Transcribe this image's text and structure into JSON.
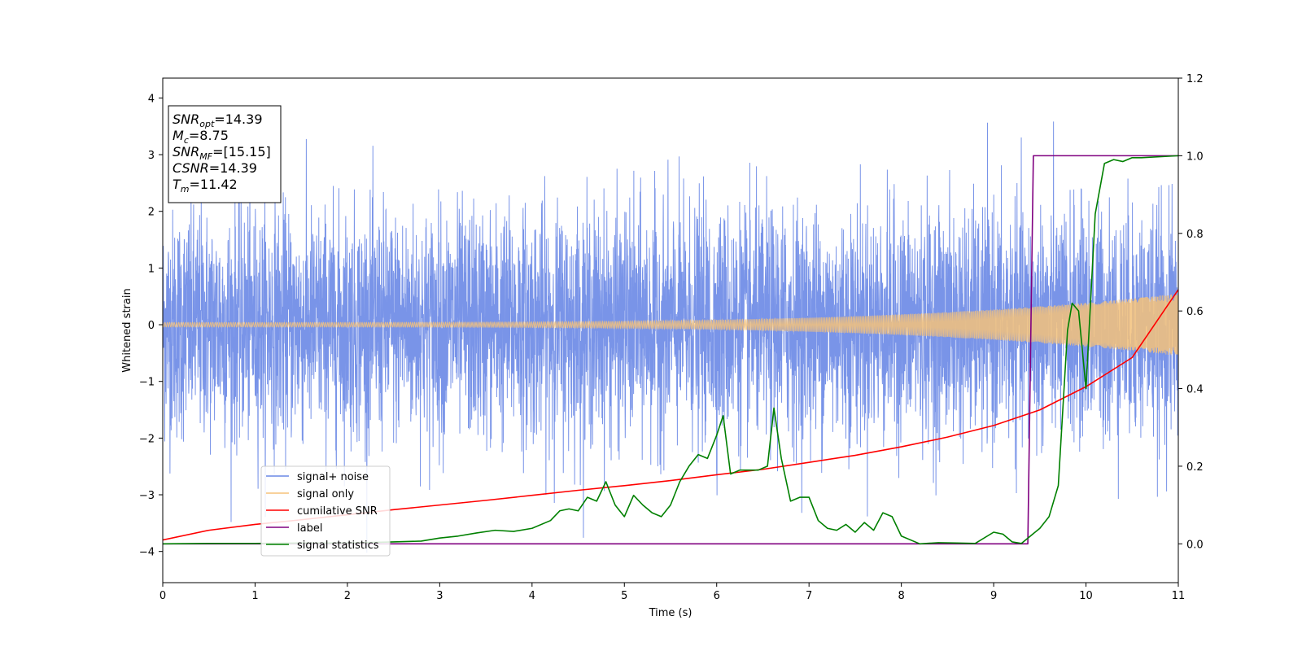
{
  "chart_data": {
    "type": "line",
    "xlabel": "Time (s)",
    "ylabel": "Whitened strain",
    "xlim": [
      0,
      11
    ],
    "ylim": [
      -4.55,
      4.35
    ],
    "y2lim": [
      -0.1,
      1.2
    ],
    "x_ticks": [
      0,
      1,
      2,
      3,
      4,
      5,
      6,
      7,
      8,
      9,
      10,
      11
    ],
    "x_tick_labels": [
      "0",
      "1",
      "2",
      "3",
      "4",
      "5",
      "6",
      "7",
      "8",
      "9",
      "10",
      "11"
    ],
    "y_ticks": [
      -4,
      -3,
      -2,
      -1,
      0,
      1,
      2,
      3,
      4
    ],
    "y_tick_labels": [
      "−4",
      "−3",
      "−2",
      "−1",
      "0",
      "1",
      "2",
      "3",
      "4"
    ],
    "y2_ticks": [
      0.0,
      0.2,
      0.4,
      0.6,
      0.8,
      1.0,
      1.2
    ],
    "y2_tick_labels": [
      "0.0",
      "0.2",
      "0.4",
      "0.6",
      "0.8",
      "1.0",
      "1.2"
    ],
    "info_box": {
      "lines": [
        {
          "base": "SNR",
          "sub": "opt",
          "rest": "=14.39"
        },
        {
          "base": "M",
          "sub": "c",
          "rest": "=8.75"
        },
        {
          "base": "SNR",
          "sub": "MF",
          "rest": "=[15.15]"
        },
        {
          "base": "CSNR",
          "sub": "",
          "rest": "=14.39"
        },
        {
          "base": "T",
          "sub": "m",
          "rest": "=11.42"
        }
      ]
    },
    "legend": {
      "placement": "lower-left",
      "entries": [
        "signal+ noise",
        "signal only",
        "cumilative SNR",
        "label",
        "signal statistics"
      ]
    },
    "series": [
      {
        "name": "signal+ noise",
        "axis": "left",
        "color": "#6a88e6",
        "kind": "noise",
        "x_range": [
          0,
          11
        ],
        "peak_min": -4.17,
        "peak_max": 3.93
      },
      {
        "name": "signal only",
        "axis": "left",
        "color": "#f5c27a",
        "kind": "chirp",
        "amplitude_start": 0.04,
        "amplitude_end": 0.55
      },
      {
        "name": "cumilative SNR",
        "axis": "right",
        "color": "#ff0000",
        "x": [
          0,
          0.5,
          1,
          1.5,
          2,
          2.5,
          3,
          3.5,
          4,
          4.5,
          5,
          5.5,
          6,
          6.5,
          7,
          7.5,
          8,
          8.5,
          9,
          9.5,
          10,
          10.5,
          11
        ],
        "y": [
          0.01,
          0.035,
          0.05,
          0.062,
          0.075,
          0.088,
          0.1,
          0.112,
          0.125,
          0.138,
          0.15,
          0.163,
          0.178,
          0.192,
          0.21,
          0.228,
          0.25,
          0.275,
          0.305,
          0.345,
          0.405,
          0.48,
          0.655
        ]
      },
      {
        "name": "label",
        "axis": "right",
        "color": "#800080",
        "x": [
          0,
          9.37,
          9.43,
          11
        ],
        "y": [
          0.0,
          0.0,
          1.0,
          1.0
        ]
      },
      {
        "name": "signal statistics",
        "axis": "right",
        "color": "#008000",
        "x": [
          0,
          0.5,
          1,
          1.5,
          2,
          2.5,
          2.8,
          3.0,
          3.2,
          3.4,
          3.6,
          3.8,
          4.0,
          4.2,
          4.3,
          4.4,
          4.5,
          4.6,
          4.7,
          4.8,
          4.9,
          5.0,
          5.1,
          5.2,
          5.3,
          5.4,
          5.5,
          5.6,
          5.7,
          5.8,
          5.9,
          6.0,
          6.07,
          6.15,
          6.25,
          6.35,
          6.45,
          6.55,
          6.62,
          6.7,
          6.8,
          6.9,
          7.0,
          7.1,
          7.2,
          7.3,
          7.4,
          7.5,
          7.6,
          7.7,
          7.8,
          7.9,
          8.0,
          8.2,
          8.4,
          8.6,
          8.8,
          9.0,
          9.1,
          9.2,
          9.3,
          9.5,
          9.6,
          9.7,
          9.8,
          9.85,
          9.92,
          10.0,
          10.1,
          10.2,
          10.3,
          10.4,
          10.5,
          10.6,
          11.0
        ],
        "y": [
          0.0,
          0.001,
          0.001,
          0.002,
          0.002,
          0.005,
          0.007,
          0.015,
          0.02,
          0.028,
          0.035,
          0.032,
          0.04,
          0.06,
          0.085,
          0.09,
          0.085,
          0.12,
          0.11,
          0.16,
          0.1,
          0.07,
          0.125,
          0.1,
          0.08,
          0.07,
          0.1,
          0.16,
          0.2,
          0.23,
          0.22,
          0.28,
          0.33,
          0.18,
          0.19,
          0.19,
          0.19,
          0.2,
          0.35,
          0.22,
          0.11,
          0.12,
          0.12,
          0.06,
          0.04,
          0.035,
          0.05,
          0.03,
          0.055,
          0.035,
          0.08,
          0.07,
          0.02,
          0.0,
          0.003,
          0.002,
          0.001,
          0.03,
          0.025,
          0.005,
          0.001,
          0.04,
          0.07,
          0.15,
          0.55,
          0.62,
          0.6,
          0.4,
          0.85,
          0.98,
          0.99,
          0.985,
          0.995,
          0.995,
          1.0
        ]
      }
    ]
  }
}
